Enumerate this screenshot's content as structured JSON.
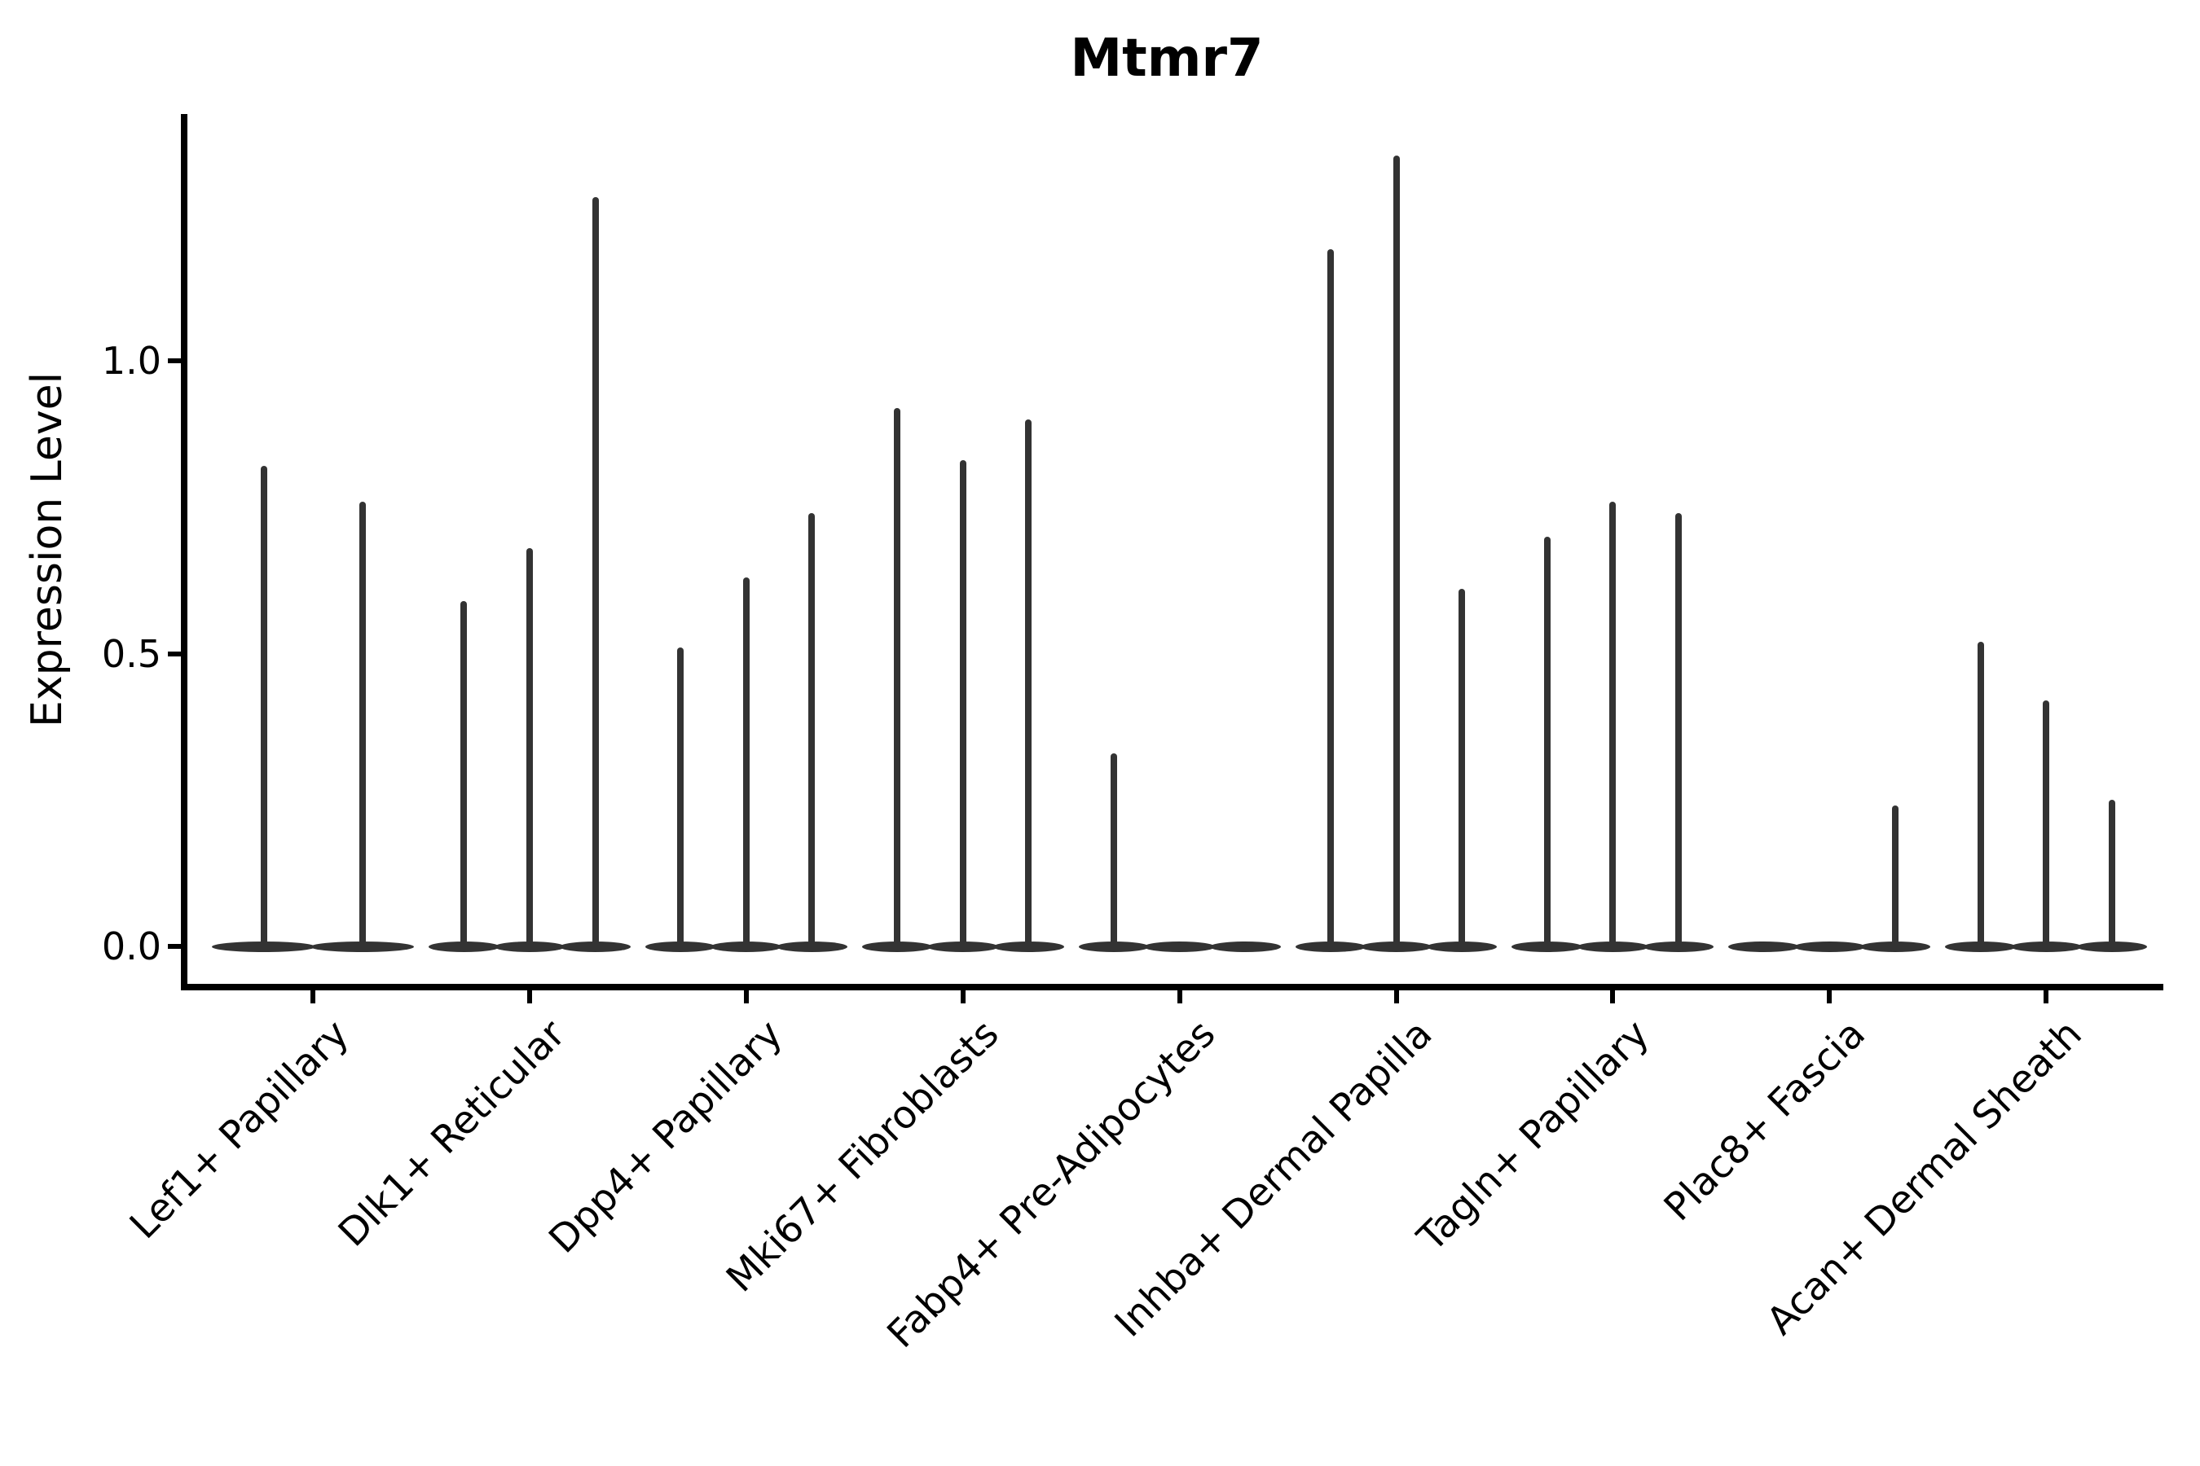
{
  "chart_data": {
    "type": "violin",
    "title": "Mtmr7",
    "xlabel": "",
    "ylabel": "Expression Level",
    "ytick_labels": [
      "0.0",
      "0.5",
      "1.0"
    ],
    "ytick_values": [
      0.0,
      0.5,
      1.0
    ],
    "ylim": [
      -0.067,
      1.42
    ],
    "grid": false,
    "legend": "none",
    "style": {
      "violin_color": "#333333",
      "axis_color": "#000000",
      "background": "#ffffff"
    },
    "groups": [
      {
        "category": "Lef1+ Papillary",
        "violin_max_expression": [
          0.82,
          0.76
        ]
      },
      {
        "category": "Dlk1+ Reticular",
        "violin_max_expression": [
          0.59,
          0.68,
          1.28
        ]
      },
      {
        "category": "Dpp4+ Papillary",
        "violin_max_expression": [
          0.51,
          0.63,
          0.74
        ]
      },
      {
        "category": "Mki67+ Fibroblasts",
        "violin_max_expression": [
          0.92,
          0.83,
          0.9
        ]
      },
      {
        "category": "Fabp4+ Pre-Adipocytes",
        "violin_max_expression": [
          0.33,
          0,
          0
        ]
      },
      {
        "category": "Inhba+ Dermal Papilla",
        "violin_max_expression": [
          1.19,
          1.35,
          0.61
        ]
      },
      {
        "category": "Tagln+ Papillary",
        "violin_max_expression": [
          0.7,
          0.76,
          0.74
        ]
      },
      {
        "category": "Plac8+ Fascia",
        "violin_max_expression": [
          0,
          0,
          0.24
        ]
      },
      {
        "category": "Acan+ Dermal Sheath",
        "violin_max_expression": [
          0.52,
          0.42,
          0.25
        ]
      }
    ]
  }
}
